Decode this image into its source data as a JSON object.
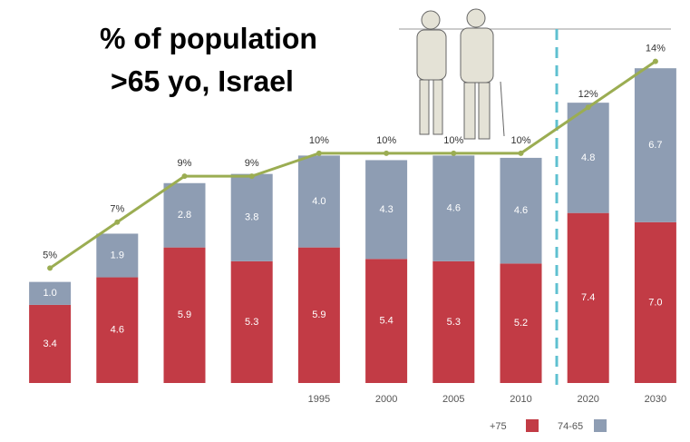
{
  "chart_data": {
    "type": "stacked-bar-line",
    "title": [
      "% of population",
      ">65 yo, Israel"
    ],
    "categories": [
      null,
      null,
      null,
      null,
      "1995",
      "2000",
      "2005",
      "2010",
      "2020",
      "2030"
    ],
    "series": [
      {
        "name": "+75",
        "color": "#c23b45",
        "values": [
          3.4,
          4.6,
          5.9,
          5.3,
          5.9,
          5.4,
          5.3,
          5.2,
          7.4,
          7.0
        ],
        "value_labels": [
          "3.4",
          "4.6",
          "5.9",
          "5.3",
          "5.9",
          "5.4",
          "5.3",
          "5.2",
          "7.4",
          "7.0"
        ]
      },
      {
        "name": "74-65",
        "color": "#8e9db3",
        "values": [
          1.0,
          1.9,
          2.8,
          3.8,
          4.0,
          4.3,
          4.6,
          4.6,
          4.8,
          6.7
        ],
        "value_labels": [
          "1.0",
          "1.9",
          "2.8",
          "3.8",
          "4.0",
          "4.3",
          "4.6",
          "4.6",
          "4.8",
          "6.7"
        ]
      }
    ],
    "line": {
      "color": "#9bad52",
      "values": [
        5,
        7,
        9,
        9,
        10,
        10,
        10,
        10,
        12,
        14
      ],
      "value_labels": [
        "5%",
        "7%",
        "9%",
        "9%",
        "10%",
        "10%",
        "10%",
        "10%",
        "12%",
        "14%"
      ]
    },
    "ylim": [
      0,
      14.3
    ]
  }
}
